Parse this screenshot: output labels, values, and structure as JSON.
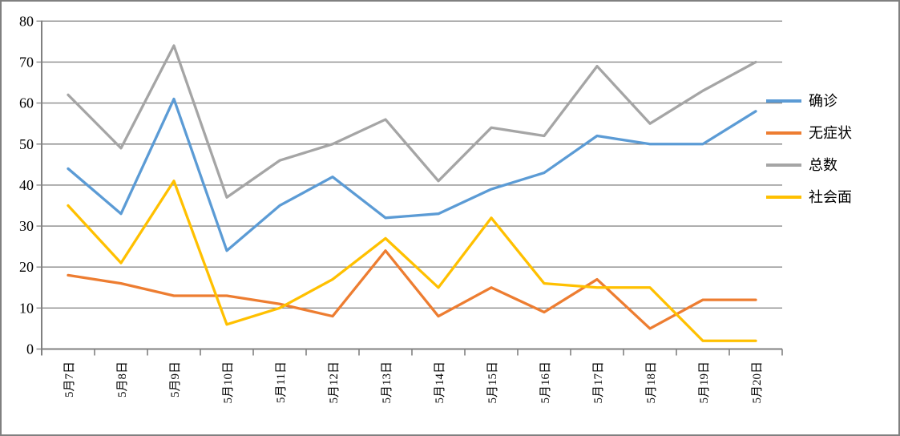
{
  "chart_data": {
    "type": "line",
    "title": "",
    "xlabel": "",
    "ylabel": "",
    "categories": [
      "5月7日",
      "5月8日",
      "5月9日",
      "5月10日",
      "5月11日",
      "5月12日",
      "5月13日",
      "5月14日",
      "5月15日",
      "5月16日",
      "5月17日",
      "5月18日",
      "5月19日",
      "5月20日"
    ],
    "series": [
      {
        "name": "确诊",
        "color": "#5B9BD5",
        "values": [
          44,
          33,
          61,
          24,
          35,
          42,
          32,
          33,
          39,
          43,
          52,
          50,
          50,
          58
        ]
      },
      {
        "name": "无症状",
        "color": "#ED7D31",
        "values": [
          18,
          16,
          13,
          13,
          11,
          8,
          24,
          8,
          15,
          9,
          17,
          5,
          12,
          12
        ]
      },
      {
        "name": "总数",
        "color": "#A5A5A5",
        "values": [
          62,
          49,
          74,
          37,
          46,
          50,
          56,
          41,
          54,
          52,
          69,
          55,
          63,
          70
        ]
      },
      {
        "name": "社会面",
        "color": "#FFC000",
        "values": [
          35,
          21,
          41,
          6,
          10,
          17,
          27,
          15,
          32,
          16,
          15,
          15,
          2,
          2
        ]
      }
    ],
    "ylim": [
      0,
      80
    ],
    "yticks": [
      0,
      10,
      20,
      30,
      40,
      50,
      60,
      70,
      80
    ],
    "grid": true,
    "legend_position": "right",
    "colors": {
      "axis": "#808080",
      "gridline": "#8a8a8a",
      "chart_border": "#808080",
      "background": "#ffffff",
      "text": "#000000"
    }
  }
}
